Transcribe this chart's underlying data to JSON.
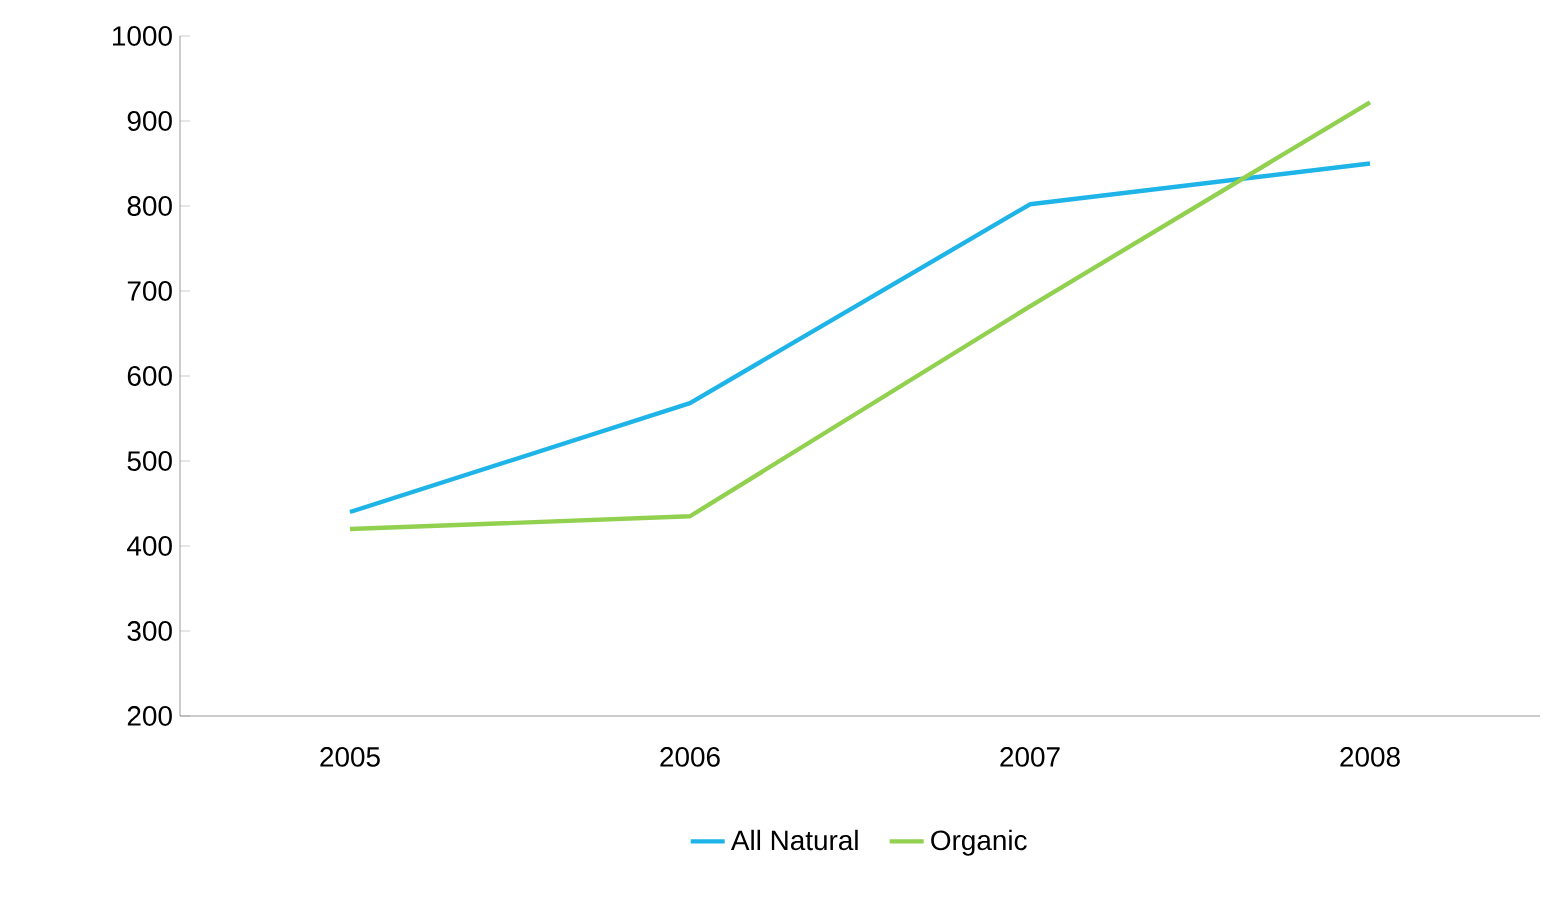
{
  "chart_data": {
    "type": "line",
    "categories": [
      "2005",
      "2006",
      "2007",
      "2008"
    ],
    "series": [
      {
        "name": "All Natural",
        "color": "#1fb4e8",
        "values": [
          440,
          568,
          802,
          850
        ]
      },
      {
        "name": "Organic",
        "color": "#92d050",
        "values": [
          420,
          435,
          682,
          922
        ]
      }
    ],
    "ylim": [
      200,
      1000
    ],
    "yticks": [
      200,
      300,
      400,
      500,
      600,
      700,
      800,
      900,
      1000
    ],
    "grid": false,
    "legend": "bottom",
    "marker": "none",
    "line_style": "solid"
  }
}
